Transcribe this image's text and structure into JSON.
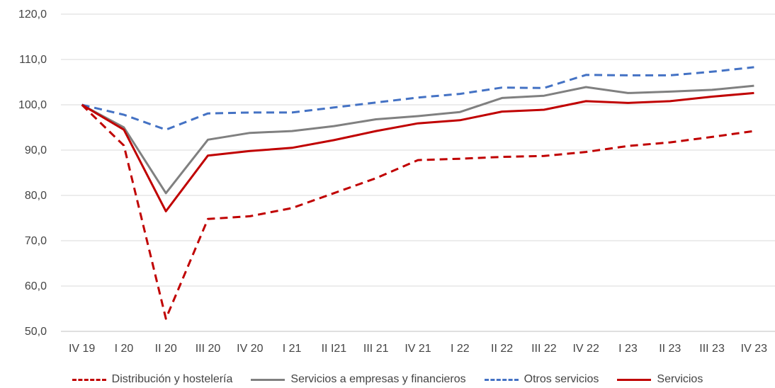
{
  "chart_data": {
    "type": "line",
    "title": "",
    "xlabel": "",
    "ylabel": "",
    "ylim": [
      50,
      120
    ],
    "y_ticks": [
      "50,0",
      "60,0",
      "70,0",
      "80,0",
      "90,0",
      "100,0",
      "110,0",
      "120,0"
    ],
    "y_tick_values": [
      50,
      60,
      70,
      80,
      90,
      100,
      110,
      120
    ],
    "grid": "horizontal",
    "legend_position": "bottom",
    "categories": [
      "IV 19",
      "I 20",
      "II 20",
      "III 20",
      "IV 20",
      "I 21",
      "II I21",
      "III 21",
      "IV 21",
      "I 22",
      "II 22",
      "III 22",
      "IV 22",
      "I 23",
      "II 23",
      "III 23",
      "IV 23"
    ],
    "series": [
      {
        "name": "Distribución y hostelería",
        "color": "#c00000",
        "style": "dashed",
        "values": [
          100.0,
          91.0,
          52.8,
          74.8,
          75.4,
          77.2,
          80.5,
          83.8,
          87.8,
          88.1,
          88.5,
          88.7,
          89.6,
          90.9,
          91.7,
          92.9,
          94.2
        ]
      },
      {
        "name": "Servicios a empresas y financieros",
        "color": "#808080",
        "style": "solid",
        "values": [
          100.0,
          95.0,
          80.5,
          92.3,
          93.8,
          94.2,
          95.3,
          96.8,
          97.5,
          98.4,
          101.5,
          102.0,
          103.9,
          102.6,
          102.9,
          103.3,
          104.2
        ]
      },
      {
        "name": "Otros servicios",
        "color": "#4472c4",
        "style": "dashed",
        "values": [
          100.0,
          97.8,
          94.5,
          98.1,
          98.3,
          98.3,
          99.4,
          100.5,
          101.6,
          102.4,
          103.8,
          103.7,
          106.6,
          106.5,
          106.5,
          107.3,
          108.3
        ]
      },
      {
        "name": "Servicios",
        "color": "#c00000",
        "style": "solid",
        "values": [
          100.0,
          94.5,
          76.5,
          88.8,
          89.8,
          90.5,
          92.2,
          94.2,
          95.9,
          96.6,
          98.5,
          98.9,
          100.8,
          100.4,
          100.8,
          101.8,
          102.6
        ]
      }
    ]
  }
}
